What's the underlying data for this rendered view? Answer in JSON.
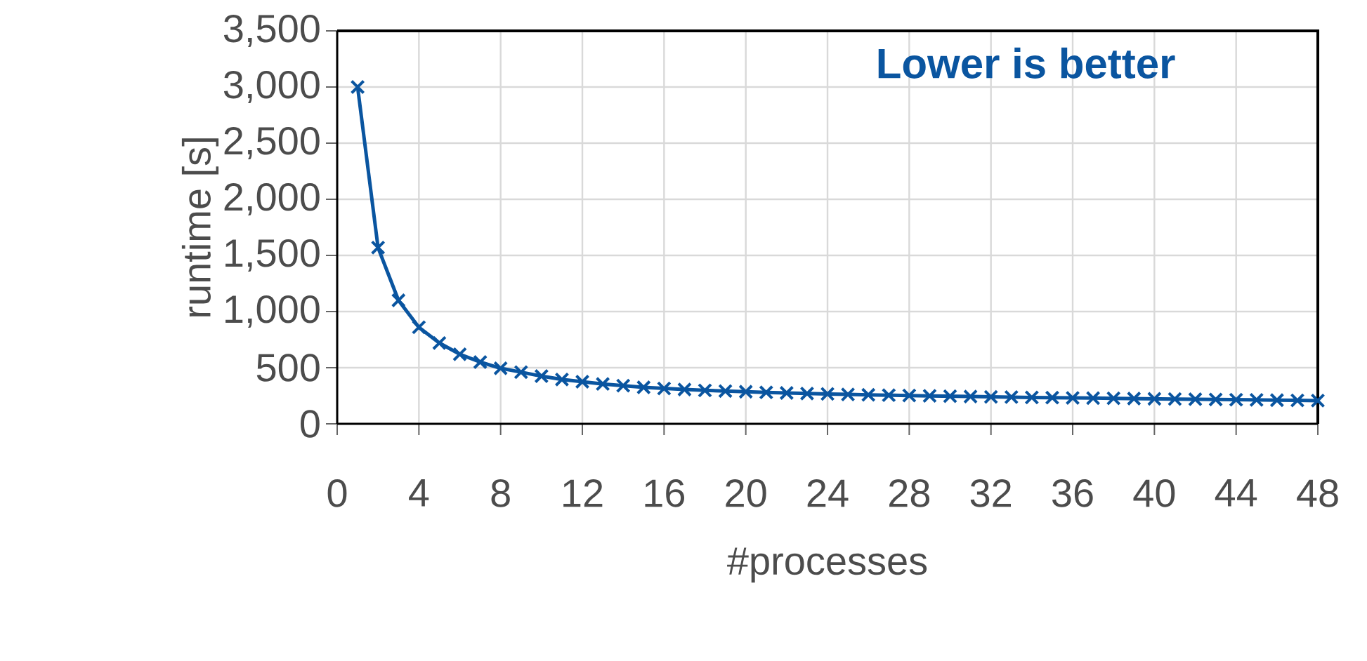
{
  "chart_data": {
    "type": "line",
    "xlabel": "#processes",
    "ylabel": "runtime [s]",
    "annotations": [
      "Lower is better"
    ],
    "x": [
      1,
      2,
      3,
      4,
      5,
      6,
      7,
      8,
      9,
      10,
      11,
      12,
      13,
      14,
      15,
      16,
      17,
      18,
      19,
      20,
      21,
      22,
      23,
      24,
      25,
      26,
      27,
      28,
      29,
      30,
      31,
      32,
      33,
      34,
      35,
      36,
      37,
      38,
      39,
      40,
      41,
      42,
      43,
      44,
      45,
      46,
      47,
      48
    ],
    "series": [
      {
        "color": "#0a55a0",
        "values": [
          3000,
          1570,
          1100,
          860,
          720,
          620,
          550,
          495,
          460,
          425,
          395,
          375,
          355,
          340,
          325,
          315,
          306,
          298,
          292,
          286,
          280,
          275,
          270,
          266,
          262,
          258,
          255,
          252,
          249,
          246,
          243,
          240,
          238,
          235,
          233,
          231,
          229,
          227,
          225,
          223,
          221,
          219,
          217,
          215,
          213,
          211,
          209,
          207
        ]
      }
    ],
    "xlim": [
      0,
      48
    ],
    "xticks": [
      0,
      4,
      8,
      12,
      16,
      20,
      24,
      28,
      32,
      36,
      40,
      44,
      48
    ],
    "ylim": [
      0,
      3500
    ],
    "yticks": [
      0,
      500,
      {
        "value": 1000,
        "label": "1,000"
      },
      {
        "value": 1500,
        "label": "1,500"
      },
      {
        "value": 2000,
        "label": "2,000"
      },
      {
        "value": 2500,
        "label": "2,500"
      },
      {
        "value": 3000,
        "label": "3,000"
      },
      {
        "value": 3500,
        "label": "3,500"
      }
    ],
    "grid": true,
    "marker": "cross",
    "line_style": "solid"
  }
}
